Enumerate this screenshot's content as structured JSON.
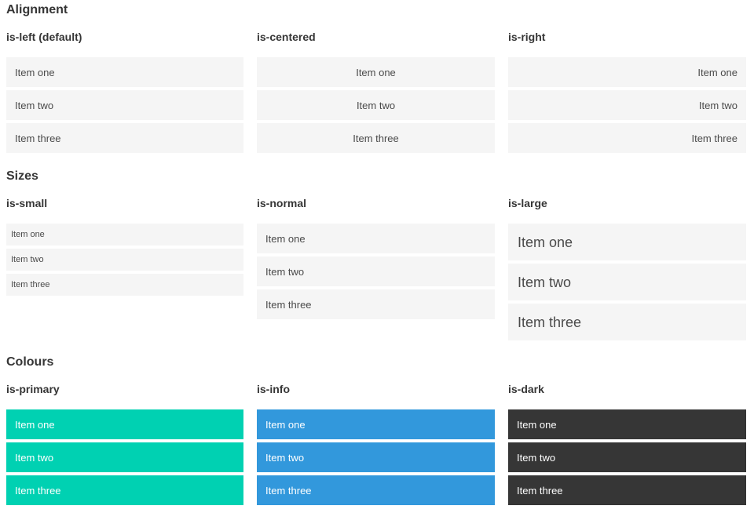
{
  "sections": [
    {
      "title": "Alignment",
      "groups": [
        {
          "label": "is-left (default)",
          "items": [
            "Item one",
            "Item two",
            "Item three"
          ]
        },
        {
          "label": "is-centered",
          "items": [
            "Item one",
            "Item two",
            "Item three"
          ]
        },
        {
          "label": "is-right",
          "items": [
            "Item one",
            "Item two",
            "Item three"
          ]
        }
      ]
    },
    {
      "title": "Sizes",
      "groups": [
        {
          "label": "is-small",
          "items": [
            "Item one",
            "Item two",
            "Item three"
          ]
        },
        {
          "label": "is-normal",
          "items": [
            "Item one",
            "Item two",
            "Item three"
          ]
        },
        {
          "label": "is-large",
          "items": [
            "Item one",
            "Item two",
            "Item three"
          ]
        }
      ]
    },
    {
      "title": "Colours",
      "groups": [
        {
          "label": "is-primary",
          "items": [
            "Item one",
            "Item two",
            "Item three"
          ]
        },
        {
          "label": "is-info",
          "items": [
            "Item one",
            "Item two",
            "Item three"
          ]
        },
        {
          "label": "is-dark",
          "items": [
            "Item one",
            "Item two",
            "Item three"
          ]
        }
      ]
    }
  ],
  "colors": {
    "primary": "#00d1b2",
    "info": "#3298dc",
    "dark": "#363636",
    "item-bg": "#f5f5f5",
    "item-text": "#4a4a4a",
    "heading": "#363636",
    "on-color-text": "#ffffff"
  }
}
